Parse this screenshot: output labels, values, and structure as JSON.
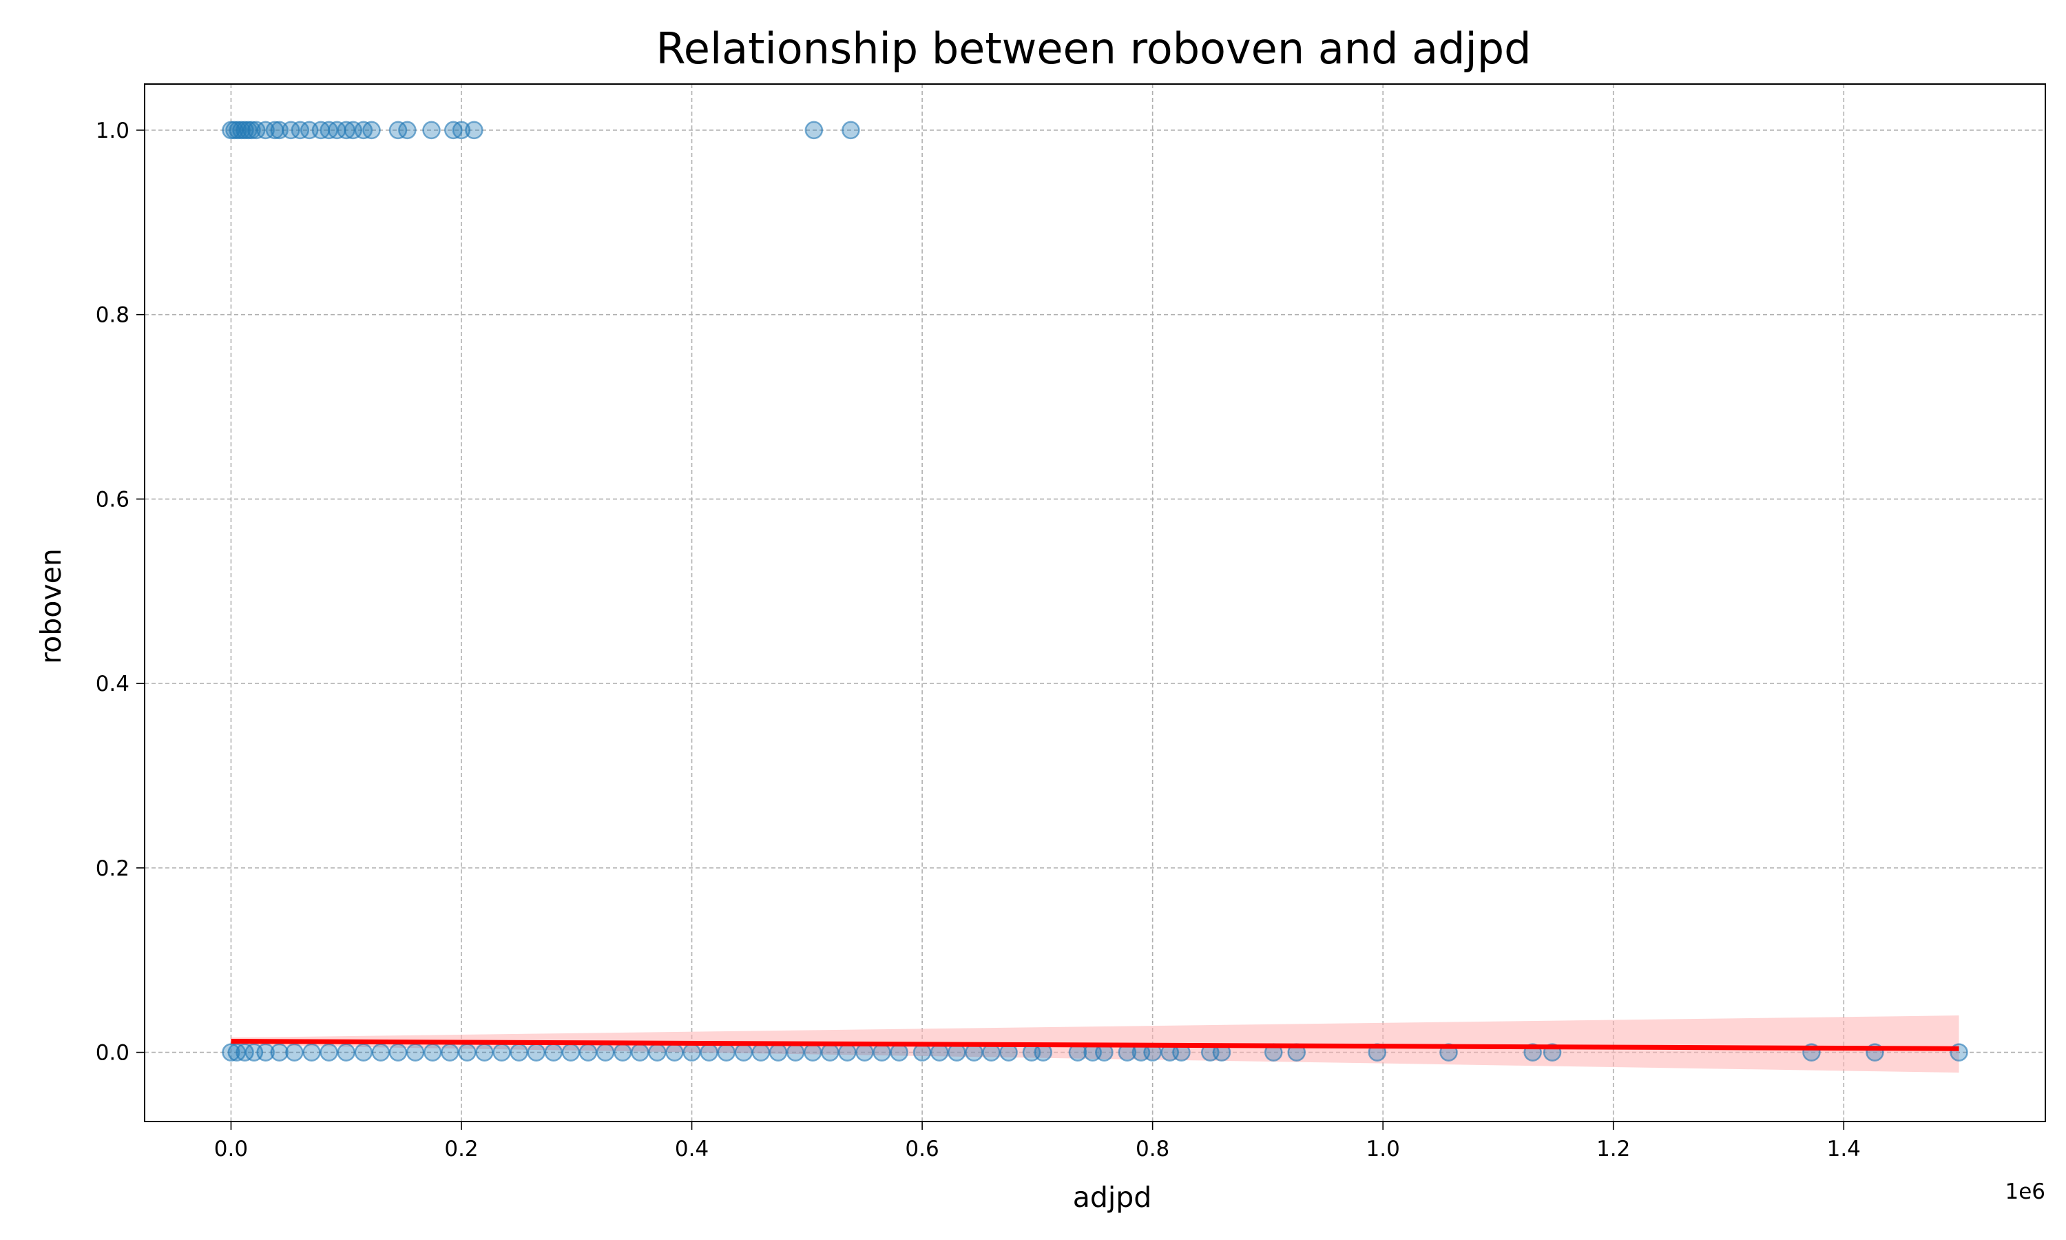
{
  "chart_data": {
    "type": "scatter",
    "title": "Relationship between roboven and adjpd",
    "xlabel": "adjpd",
    "ylabel": "roboven",
    "x_offset_label": "1e6",
    "x_scale": 1000000,
    "xlim": [
      -75000,
      1575000
    ],
    "ylim": [
      -0.075,
      1.05
    ],
    "x_ticks": [
      0,
      200000,
      400000,
      600000,
      800000,
      1000000,
      1200000,
      1400000
    ],
    "x_tick_labels": [
      "0.0",
      "0.2",
      "0.4",
      "0.6",
      "0.8",
      "1.0",
      "1.2",
      "1.4"
    ],
    "y_ticks": [
      0,
      0.2,
      0.4,
      0.6,
      0.8,
      1.0
    ],
    "y_tick_labels": [
      "0.0",
      "0.2",
      "0.4",
      "0.6",
      "0.8",
      "1.0"
    ],
    "grid": true,
    "point_color": "#1f77b4",
    "point_opacity": 0.35,
    "regression_color": "#ff0000",
    "band_color": "#ffb3b3",
    "series": [
      {
        "values_at_1": [
          {
            "x": 0,
            "y": 1
          },
          {
            "x": 3000,
            "y": 1
          },
          {
            "x": 6000,
            "y": 1
          },
          {
            "x": 9000,
            "y": 1
          },
          {
            "x": 12000,
            "y": 1
          },
          {
            "x": 15000,
            "y": 1
          },
          {
            "x": 18000,
            "y": 1
          },
          {
            "x": 22000,
            "y": 1
          },
          {
            "x": 30000,
            "y": 1
          },
          {
            "x": 38000,
            "y": 1
          },
          {
            "x": 42000,
            "y": 1
          },
          {
            "x": 52000,
            "y": 1
          },
          {
            "x": 60000,
            "y": 1
          },
          {
            "x": 68000,
            "y": 1
          },
          {
            "x": 78000,
            "y": 1
          },
          {
            "x": 85000,
            "y": 1
          },
          {
            "x": 92000,
            "y": 1
          },
          {
            "x": 100000,
            "y": 1
          },
          {
            "x": 106000,
            "y": 1
          },
          {
            "x": 115000,
            "y": 1
          },
          {
            "x": 122000,
            "y": 1
          },
          {
            "x": 145000,
            "y": 1
          },
          {
            "x": 153000,
            "y": 1
          },
          {
            "x": 174000,
            "y": 1
          },
          {
            "x": 193000,
            "y": 1
          },
          {
            "x": 200000,
            "y": 1
          },
          {
            "x": 211000,
            "y": 1
          },
          {
            "x": 506000,
            "y": 1
          },
          {
            "x": 538000,
            "y": 1
          }
        ]
      },
      {
        "values_at_0": [
          {
            "x": 0,
            "y": 0
          },
          {
            "x": 5000,
            "y": 0
          },
          {
            "x": 12000,
            "y": 0
          },
          {
            "x": 20000,
            "y": 0
          },
          {
            "x": 30000,
            "y": 0
          },
          {
            "x": 42000,
            "y": 0
          },
          {
            "x": 55000,
            "y": 0
          },
          {
            "x": 70000,
            "y": 0
          },
          {
            "x": 85000,
            "y": 0
          },
          {
            "x": 100000,
            "y": 0
          },
          {
            "x": 115000,
            "y": 0
          },
          {
            "x": 130000,
            "y": 0
          },
          {
            "x": 145000,
            "y": 0
          },
          {
            "x": 160000,
            "y": 0
          },
          {
            "x": 175000,
            "y": 0
          },
          {
            "x": 190000,
            "y": 0
          },
          {
            "x": 205000,
            "y": 0
          },
          {
            "x": 220000,
            "y": 0
          },
          {
            "x": 235000,
            "y": 0
          },
          {
            "x": 250000,
            "y": 0
          },
          {
            "x": 265000,
            "y": 0
          },
          {
            "x": 280000,
            "y": 0
          },
          {
            "x": 295000,
            "y": 0
          },
          {
            "x": 310000,
            "y": 0
          },
          {
            "x": 325000,
            "y": 0
          },
          {
            "x": 340000,
            "y": 0
          },
          {
            "x": 355000,
            "y": 0
          },
          {
            "x": 370000,
            "y": 0
          },
          {
            "x": 385000,
            "y": 0
          },
          {
            "x": 400000,
            "y": 0
          },
          {
            "x": 415000,
            "y": 0
          },
          {
            "x": 430000,
            "y": 0
          },
          {
            "x": 445000,
            "y": 0
          },
          {
            "x": 460000,
            "y": 0
          },
          {
            "x": 475000,
            "y": 0
          },
          {
            "x": 490000,
            "y": 0
          },
          {
            "x": 505000,
            "y": 0
          },
          {
            "x": 520000,
            "y": 0
          },
          {
            "x": 535000,
            "y": 0
          },
          {
            "x": 550000,
            "y": 0
          },
          {
            "x": 565000,
            "y": 0
          },
          {
            "x": 580000,
            "y": 0
          },
          {
            "x": 600000,
            "y": 0
          },
          {
            "x": 615000,
            "y": 0
          },
          {
            "x": 630000,
            "y": 0
          },
          {
            "x": 645000,
            "y": 0
          },
          {
            "x": 660000,
            "y": 0
          },
          {
            "x": 675000,
            "y": 0
          },
          {
            "x": 695000,
            "y": 0
          },
          {
            "x": 705000,
            "y": 0
          },
          {
            "x": 735000,
            "y": 0
          },
          {
            "x": 748000,
            "y": 0
          },
          {
            "x": 758000,
            "y": 0
          },
          {
            "x": 778000,
            "y": 0
          },
          {
            "x": 790000,
            "y": 0
          },
          {
            "x": 800000,
            "y": 0
          },
          {
            "x": 815000,
            "y": 0
          },
          {
            "x": 825000,
            "y": 0
          },
          {
            "x": 850000,
            "y": 0
          },
          {
            "x": 860000,
            "y": 0
          },
          {
            "x": 905000,
            "y": 0
          },
          {
            "x": 925000,
            "y": 0
          },
          {
            "x": 995000,
            "y": 0
          },
          {
            "x": 1057000,
            "y": 0
          },
          {
            "x": 1130000,
            "y": 0
          },
          {
            "x": 1147000,
            "y": 0
          },
          {
            "x": 1372000,
            "y": 0
          },
          {
            "x": 1427000,
            "y": 0
          },
          {
            "x": 1500000,
            "y": 0
          }
        ]
      }
    ],
    "regression": {
      "x": [
        0,
        1500000
      ],
      "y": [
        0.012,
        0.004
      ],
      "band_lower": [
        0.008,
        -0.022
      ],
      "band_upper": [
        0.016,
        0.04
      ]
    }
  }
}
